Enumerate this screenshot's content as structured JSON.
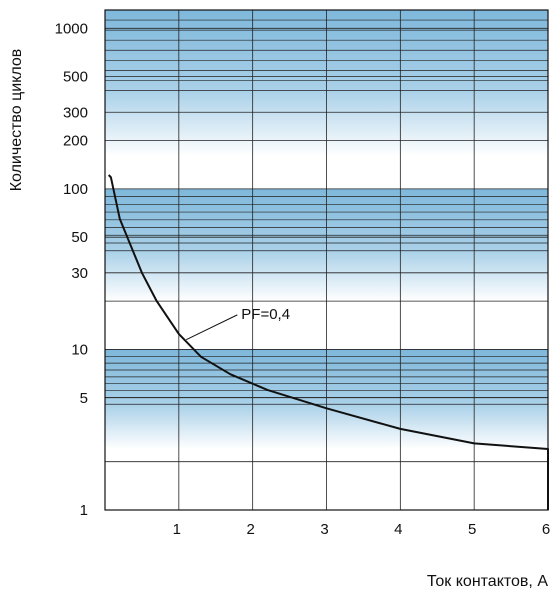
{
  "chart_data": {
    "type": "line",
    "xlabel": "Ток контактов, А",
    "ylabel": "Количество циклов",
    "xlim": [
      0,
      6
    ],
    "ylim": [
      1,
      1300
    ],
    "yscale": "log",
    "grid": true,
    "x_ticks": [
      "1",
      "2",
      "3",
      "4",
      "5",
      "6"
    ],
    "y_ticks": [
      "1",
      "5",
      "10",
      "30",
      "50",
      "100",
      "200",
      "300",
      "500",
      "1000"
    ],
    "series": [
      {
        "name": "",
        "color": "#111111",
        "points": [
          {
            "x": 0.05,
            "y": 122
          },
          {
            "x": 0.08,
            "y": 118
          },
          {
            "x": 0.2,
            "y": 65
          },
          {
            "x": 0.5,
            "y": 30
          },
          {
            "x": 0.7,
            "y": 20
          },
          {
            "x": 1.0,
            "y": 12.5
          },
          {
            "x": 1.3,
            "y": 9
          },
          {
            "x": 1.7,
            "y": 7
          },
          {
            "x": 2.2,
            "y": 5.6
          },
          {
            "x": 3.0,
            "y": 4.3
          },
          {
            "x": 4.0,
            "y": 3.2
          },
          {
            "x": 5.0,
            "y": 2.6
          },
          {
            "x": 6.0,
            "y": 2.4
          },
          {
            "x": 6.0,
            "y": 1.0
          }
        ]
      }
    ],
    "annotations": [
      {
        "text": "PF=0,4",
        "x": 1.9,
        "y": 15.5,
        "points_to": {
          "x": 1.1,
          "y": 11.5
        }
      }
    ],
    "shaded_bands": [
      {
        "from": 160,
        "to": 1300,
        "color": "#7fb8db"
      },
      {
        "from": 20,
        "to": 100,
        "color": "#7fb8db"
      },
      {
        "from": 2.4,
        "to": 10,
        "color": "#7fb8db"
      }
    ]
  }
}
